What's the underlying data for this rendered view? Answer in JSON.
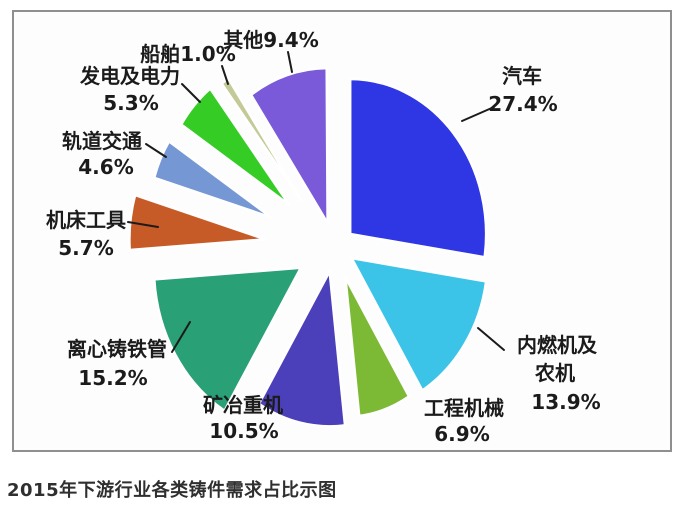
{
  "caption": "2015年下游行业各类铸件需求占比示图",
  "chart_data": {
    "type": "pie",
    "title": "2015年下游行业各类铸件需求占比示图",
    "unit": "%",
    "legend_position": "none",
    "style": "exploded",
    "start_angle_deg": 0,
    "direction": "clockwise",
    "slices": [
      {
        "label": "汽车",
        "value": 27.4,
        "display": "27.4%",
        "color": "#2f36e3"
      },
      {
        "label": "内燃机及农机",
        "value": 13.9,
        "display": "13.9%",
        "color": "#3cc4e8"
      },
      {
        "label": "工程机械",
        "value": 6.9,
        "display": "6.9%",
        "color": "#7cba35"
      },
      {
        "label": "矿冶重机",
        "value": 10.5,
        "display": "10.5%",
        "color": "#4c3fba"
      },
      {
        "label": "离心铸铁管",
        "value": 15.2,
        "display": "15.2%",
        "color": "#29a075"
      },
      {
        "label": "机床工具",
        "value": 5.7,
        "display": "5.7%",
        "color": "#c75b27"
      },
      {
        "label": "轨道交通",
        "value": 4.6,
        "display": "4.6%",
        "color": "#7598d5"
      },
      {
        "label": "发电及电力",
        "value": 5.3,
        "display": "5.3%",
        "color": "#35cc25"
      },
      {
        "label": "船舶",
        "value": 1.0,
        "display": "1.0%",
        "color": "#c3ca97"
      },
      {
        "label": "其他",
        "value": 9.4,
        "display": "9.4%",
        "color": "#7a5ad9"
      }
    ]
  }
}
